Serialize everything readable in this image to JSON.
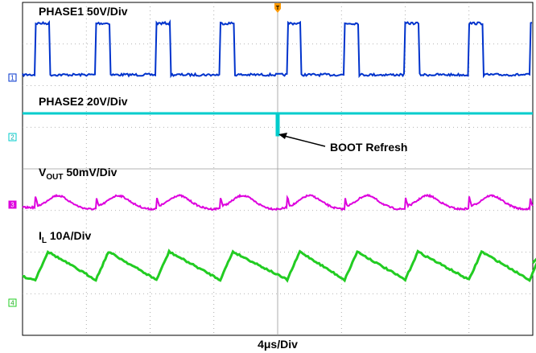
{
  "chart_data": {
    "type": "line",
    "title": "",
    "xlabel": "4μs/Div",
    "ylabel": "",
    "grid": true,
    "colors": {
      "phase1": "#0033cc",
      "phase2": "#00cccc",
      "vout": "#dd00dd",
      "il": "#22cc22",
      "grid": "#9a9a9a",
      "trigger": "#ff9900"
    },
    "channels": [
      {
        "id": "1",
        "label": "PHASE1 50V/Div"
      },
      {
        "id": "2",
        "label": "PHASE2 20V/Div"
      },
      {
        "id": "3",
        "label_main": "V",
        "label_sub": "OUT",
        "label_rest": " 50mV/Div"
      },
      {
        "id": "4",
        "label_main": "I",
        "label_sub": "L",
        "label_rest": " 10A/Div"
      }
    ],
    "annotation": "BOOT Refresh",
    "trigger_marker": "T",
    "pulse_edges_div": [
      0.2,
      1.15,
      2.1,
      3.1,
      4.15,
      5.05,
      6.0,
      7.0,
      7.95
    ],
    "pulse_width_div": 0.22,
    "boot_refresh_div": 4.0
  }
}
